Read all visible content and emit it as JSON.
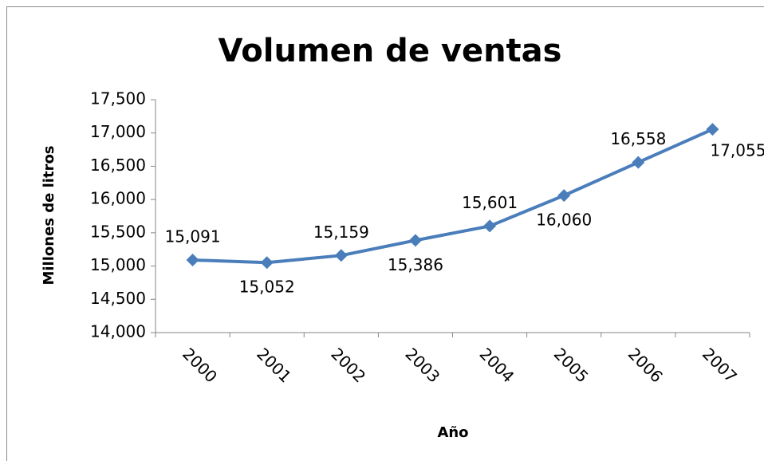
{
  "chart_data": {
    "type": "line",
    "title": "Volumen de ventas",
    "x_label": "Año",
    "y_label": "Millones de litros",
    "categories": [
      "2000",
      "2001",
      "2002",
      "2003",
      "2004",
      "2005",
      "2006",
      "2007"
    ],
    "series": [
      {
        "name": "Volumen de ventas",
        "color": "#4a7ebb",
        "values": [
          15091,
          15052,
          15159,
          15386,
          15601,
          16060,
          16558,
          17055
        ],
        "value_labels": [
          "15,091",
          "15,052",
          "15,159",
          "15,386",
          "15,601",
          "16,060",
          "16,558",
          "17,055"
        ]
      }
    ],
    "ylim": [
      14000,
      17500
    ],
    "yticks": [
      {
        "value": 14000,
        "label": "14,000"
      },
      {
        "value": 14500,
        "label": "14,500"
      },
      {
        "value": 15000,
        "label": "15,000"
      },
      {
        "value": 15500,
        "label": "15,500"
      },
      {
        "value": 16000,
        "label": "16,000"
      },
      {
        "value": 16500,
        "label": "16,500"
      },
      {
        "value": 17000,
        "label": "17,000"
      },
      {
        "value": 17500,
        "label": "17,500"
      }
    ],
    "grid": false
  }
}
